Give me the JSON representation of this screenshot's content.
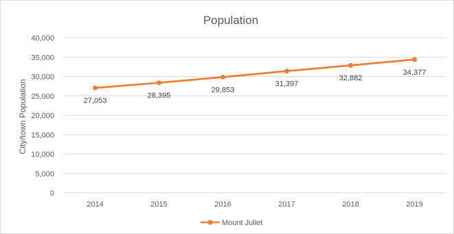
{
  "chart_data": {
    "type": "line",
    "title": "Population",
    "xlabel": "",
    "ylabel": "City/town Population",
    "categories": [
      "2014",
      "2015",
      "2016",
      "2017",
      "2018",
      "2019"
    ],
    "series": [
      {
        "name": "Mount Juliet",
        "values": [
          27053,
          28395,
          29853,
          31397,
          32882,
          34377
        ],
        "labels": [
          "27,053",
          "28,395",
          "29,853",
          "31,397",
          "32,882",
          "34,377"
        ]
      }
    ],
    "ylim": [
      0,
      40000
    ],
    "yticks": [
      "0",
      "5,000",
      "10,000",
      "15,000",
      "20,000",
      "25,000",
      "30,000",
      "35,000",
      "40,000"
    ],
    "grid": true,
    "legend_position": "bottom",
    "colors": {
      "series": "#ed7d31",
      "grid": "#d9d9d9"
    }
  }
}
